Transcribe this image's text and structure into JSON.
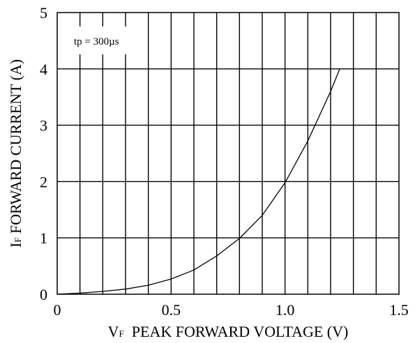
{
  "chart_data": {
    "type": "line",
    "title": "",
    "xlabel_main": "V",
    "xlabel_sub": "F",
    "xlabel_rest": "  PEAK FORWARD VOLTAGE (V)",
    "ylabel_main": "I",
    "ylabel_sub": "F",
    "ylabel_rest": " FORWARD CURRENT (A)",
    "annotation": "tp = 300µs",
    "xlim": [
      0,
      1.5
    ],
    "ylim": [
      0,
      5
    ],
    "x_tick_labels": [
      "0",
      "0.5",
      "1.0",
      "1.5"
    ],
    "x_tick_values": [
      0,
      0.5,
      1.0,
      1.5
    ],
    "y_tick_labels": [
      "0",
      "1",
      "2",
      "3",
      "4",
      "5"
    ],
    "y_tick_values": [
      0,
      1,
      2,
      3,
      4,
      5
    ],
    "x_gridlines": [
      0.1,
      0.2,
      0.3,
      0.4,
      0.5,
      0.6,
      0.7,
      0.8,
      0.9,
      1.0,
      1.1,
      1.2,
      1.3,
      1.4
    ],
    "y_gridlines": [
      1,
      2,
      3,
      4
    ],
    "grid": true,
    "line_color": "#000000",
    "series": [
      {
        "x": [
          0.0,
          0.1,
          0.2,
          0.3,
          0.4,
          0.5,
          0.6,
          0.7,
          0.8,
          0.9,
          1.0,
          1.1,
          1.2,
          1.24
        ],
        "y": [
          0.0,
          0.02,
          0.05,
          0.09,
          0.16,
          0.27,
          0.43,
          0.68,
          0.99,
          1.4,
          1.98,
          2.72,
          3.6,
          4.0
        ]
      }
    ]
  }
}
